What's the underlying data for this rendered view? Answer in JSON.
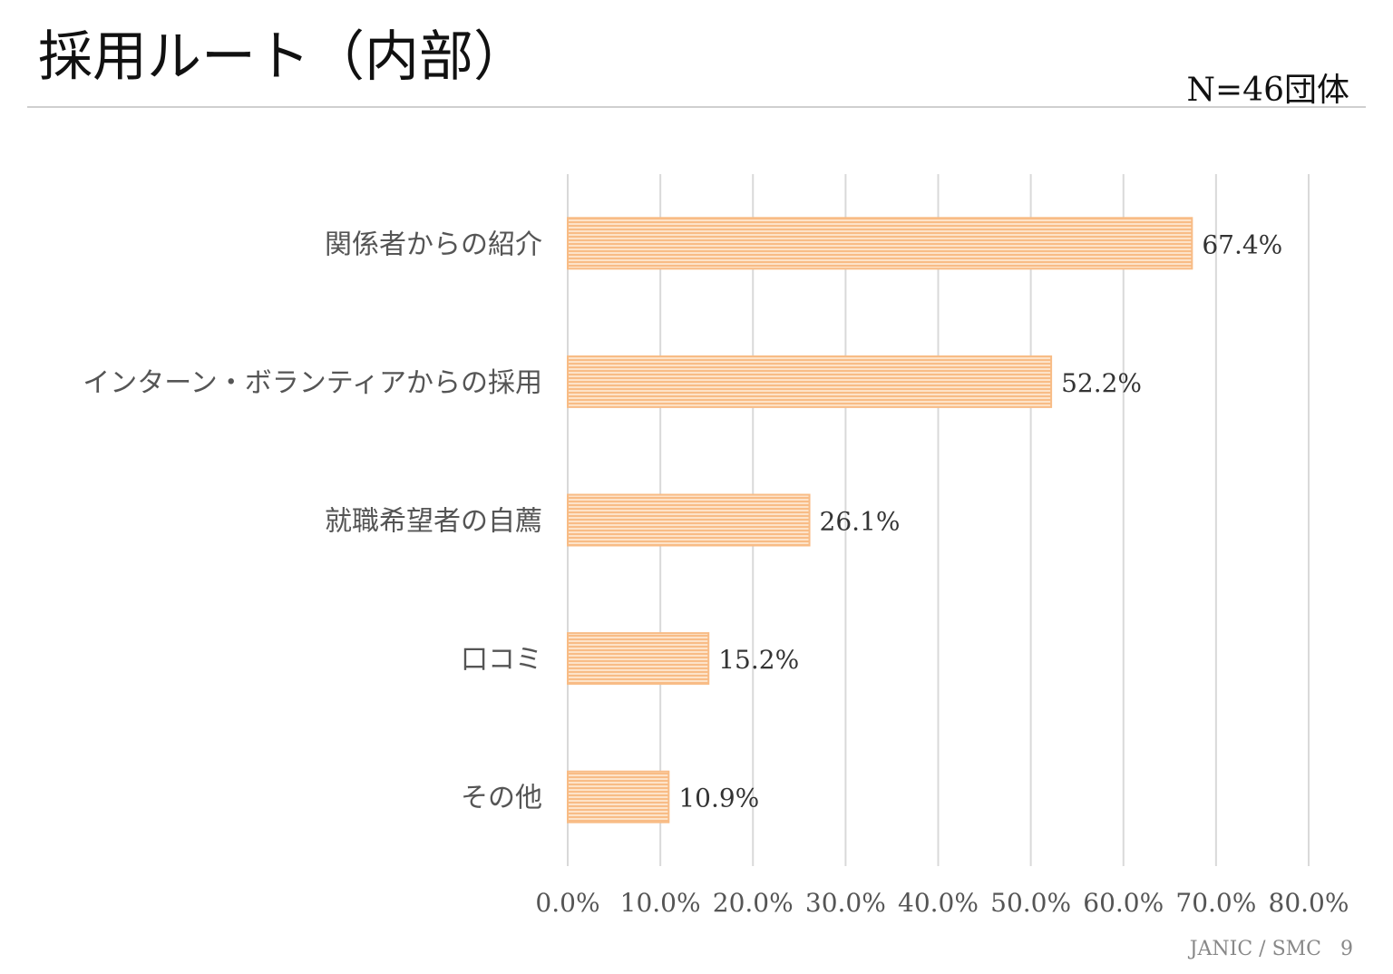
{
  "header": {
    "title": "採用ルート（内部）",
    "sample": "N=46団体"
  },
  "footer": {
    "text": "JANIC / SMC   9"
  },
  "colors": {
    "bar": "#F8BC86",
    "bar_light": "#FDE3C9",
    "grid": "#D9D9D9",
    "text": "#555555"
  },
  "chart_data": {
    "type": "bar",
    "orientation": "horizontal",
    "categories": [
      "関係者からの紹介",
      "インターン・ボランティアからの採用",
      "就職希望者の自薦",
      "口コミ",
      "その他"
    ],
    "values": [
      67.4,
      52.2,
      26.1,
      15.2,
      10.9
    ],
    "data_labels": [
      "67.4%",
      "52.2%",
      "26.1%",
      "15.2%",
      "10.9%"
    ],
    "xlim": [
      0,
      80
    ],
    "x_ticks": [
      "0.0%",
      "10.0%",
      "20.0%",
      "30.0%",
      "40.0%",
      "50.0%",
      "60.0%",
      "70.0%",
      "80.0%"
    ],
    "grid": true,
    "bar_fill": "horizontal-stripes"
  }
}
